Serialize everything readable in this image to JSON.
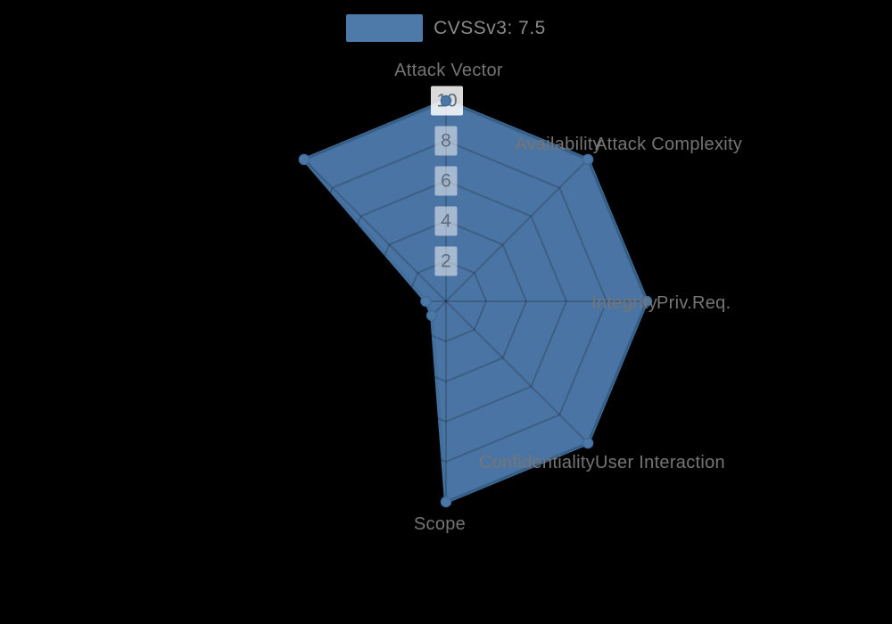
{
  "legend": {
    "label": "CVSSv3: 7.5",
    "swatch_color": "#4d7aa8"
  },
  "chart_data": {
    "type": "radar",
    "title": "",
    "categories": [
      "Attack Vector",
      "Attack Complexity",
      "Priv.Req.",
      "User Interaction",
      "Scope",
      "Confidentiality",
      "Integrity",
      "Availability"
    ],
    "series": [
      {
        "name": "CVSSv3: 7.5",
        "values": [
          10,
          10,
          10,
          10,
          10,
          1,
          1,
          10
        ]
      }
    ],
    "ticks": [
      2,
      4,
      6,
      8,
      10
    ],
    "axis_range": [
      0,
      10
    ],
    "grid": "polygon-rings-and-spokes",
    "legend_position": "top",
    "colors": {
      "background": "#000000",
      "series_fill": "#4c78a8",
      "series_stroke": "#416f9e",
      "marker_fill": "#4c78a8",
      "marker_stroke": "#3f6b9a",
      "grid_line": "rgba(0,0,0,0.18)",
      "tick_box": "rgba(255,255,255,0.5)",
      "tick_box_outer": "rgba(255,255,255,0.85)",
      "tick_text": "#5f6b78",
      "axis_label": "#757575",
      "legend_text": "#8a8a8a"
    }
  }
}
